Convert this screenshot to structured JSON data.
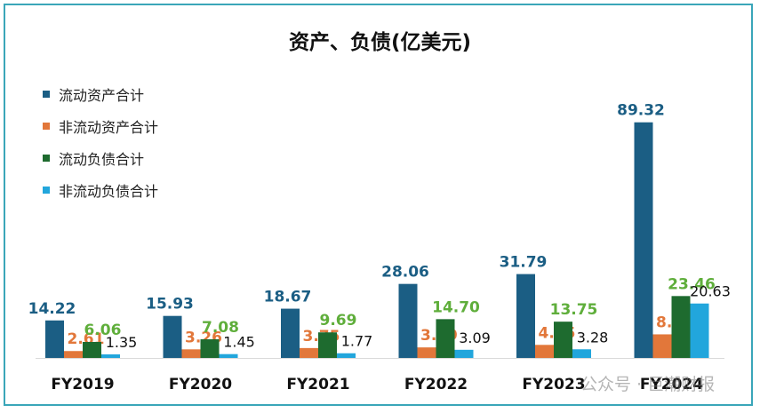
{
  "chart_data": {
    "type": "bar",
    "title": "资产、负债(亿美元)",
    "categories": [
      "FY2019",
      "FY2020",
      "FY2021",
      "FY2022",
      "FY2023",
      "FY2024"
    ],
    "series": [
      {
        "name": "流动资产合计",
        "color": "#1b5e84",
        "label_color": "#1b5e84",
        "values": [
          14.22,
          15.93,
          18.67,
          28.06,
          31.79,
          89.32
        ]
      },
      {
        "name": "非流动资产合计",
        "color": "#e2773a",
        "label_color": "#e2773a",
        "values": [
          2.61,
          3.26,
          3.75,
          3.99,
          4.95,
          8.94
        ]
      },
      {
        "name": "流动负债合计",
        "color": "#1e6b2f",
        "label_color": "#5fae3b",
        "values": [
          6.06,
          7.08,
          9.69,
          14.7,
          13.75,
          23.46
        ]
      },
      {
        "name": "非流动负债合计",
        "color": "#22a6dc",
        "label_color": "#111111",
        "values": [
          1.35,
          1.45,
          1.77,
          3.09,
          3.28,
          20.63
        ]
      }
    ],
    "value_labels": [
      [
        "14.22",
        "15.93",
        "18.67",
        "28.06",
        "31.79",
        "89.32"
      ],
      [
        "2.61",
        "3.26",
        "3.75",
        "3.99",
        "4.95",
        "8.94"
      ],
      [
        "6.06",
        "7.08",
        "9.69",
        "14.70",
        "13.75",
        "23.46"
      ],
      [
        "1.35",
        "1.45",
        "1.77",
        "3.09",
        "3.28",
        "20.63"
      ]
    ],
    "ylim": [
      0,
      100
    ],
    "grid": false,
    "legend_position": "top-left"
  },
  "watermark": "公众号 · 巨潮财报"
}
